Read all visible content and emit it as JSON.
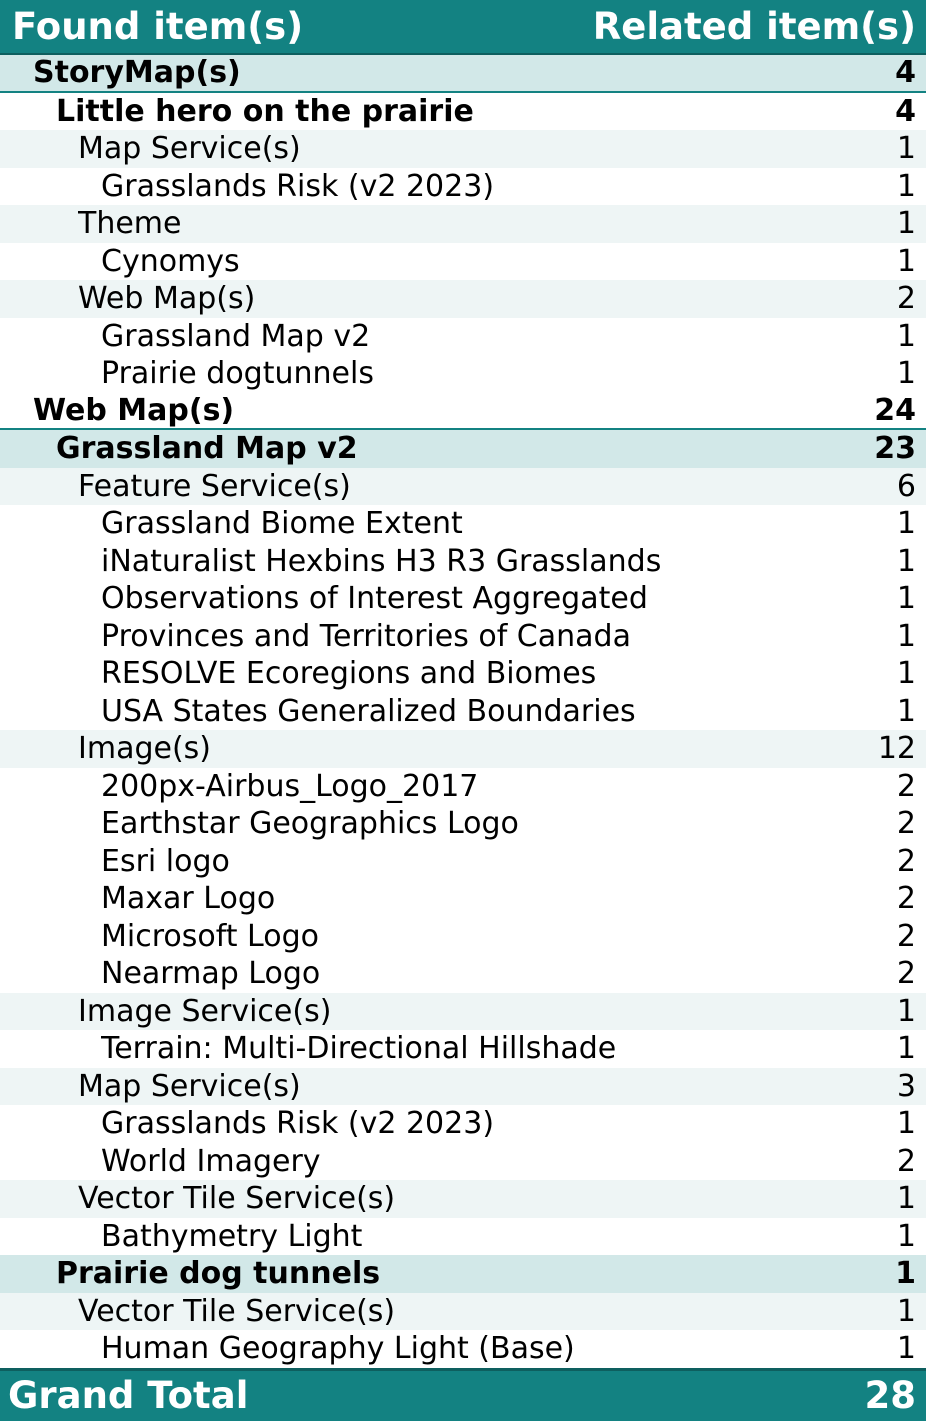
{
  "header": {
    "found": "Found item(s)",
    "related": "Related item(s)"
  },
  "rows": [
    {
      "label": "StoryMap(s)",
      "count": "4"
    },
    {
      "label": "Little hero on the prairie",
      "count": "4"
    },
    {
      "label": "Map Service(s)",
      "count": "1"
    },
    {
      "label": "Grasslands Risk (v2 2023)",
      "count": "1"
    },
    {
      "label": "Theme",
      "count": "1"
    },
    {
      "label": "Cynomys",
      "count": "1"
    },
    {
      "label": "Web Map(s)",
      "count": "2"
    },
    {
      "label": "Grassland Map v2",
      "count": "1"
    },
    {
      "label": "Prairie dogtunnels",
      "count": "1"
    },
    {
      "label": "Web Map(s)",
      "count": "24"
    },
    {
      "label": "Grassland Map v2",
      "count": "23"
    },
    {
      "label": "Feature Service(s)",
      "count": "6"
    },
    {
      "label": "Grassland Biome Extent",
      "count": "1"
    },
    {
      "label": "iNaturalist Hexbins H3 R3 Grasslands",
      "count": "1"
    },
    {
      "label": "Observations of Interest Aggregated",
      "count": "1"
    },
    {
      "label": "Provinces and Territories of Canada",
      "count": "1"
    },
    {
      "label": "RESOLVE Ecoregions and Biomes",
      "count": "1"
    },
    {
      "label": "USA States Generalized Boundaries",
      "count": "1"
    },
    {
      "label": "Image(s)",
      "count": "12"
    },
    {
      "label": "200px-Airbus_Logo_2017",
      "count": "2"
    },
    {
      "label": "Earthstar Geographics Logo",
      "count": "2"
    },
    {
      "label": "Esri logo",
      "count": "2"
    },
    {
      "label": "Maxar Logo",
      "count": "2"
    },
    {
      "label": "Microsoft Logo",
      "count": "2"
    },
    {
      "label": "Nearmap Logo",
      "count": "2"
    },
    {
      "label": "Image Service(s)",
      "count": "1"
    },
    {
      "label": "Terrain: Multi-Directional Hillshade",
      "count": "1"
    },
    {
      "label": "Map Service(s)",
      "count": "3"
    },
    {
      "label": "Grasslands Risk (v2 2023)",
      "count": "1"
    },
    {
      "label": "World Imagery",
      "count": "2"
    },
    {
      "label": "Vector Tile Service(s)",
      "count": "1"
    },
    {
      "label": "Bathymetry Light",
      "count": "1"
    },
    {
      "label": "Prairie dog tunnels",
      "count": "1"
    },
    {
      "label": "Vector Tile Service(s)",
      "count": "1"
    },
    {
      "label": "Human Geography Light (Base)",
      "count": "1"
    }
  ],
  "footer": {
    "label": "Grand Total",
    "count": "28"
  },
  "colors": {
    "header_bg": "#138282",
    "band_bg": "#d2e8e8",
    "light_bg": "#eef5f5"
  }
}
